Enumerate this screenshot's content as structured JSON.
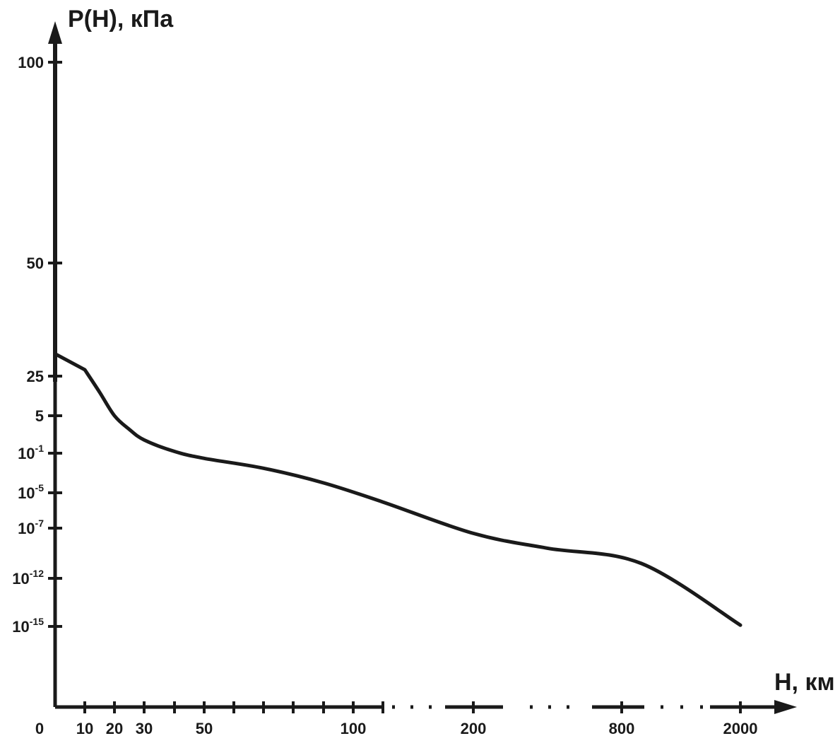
{
  "chart_data": {
    "type": "line",
    "title": "",
    "ylabel": "P(H), кПа",
    "xlabel": "H, км",
    "origin_label": "0",
    "grid": false,
    "legend": "none",
    "colors": {
      "line": "#1a1a1a",
      "axis": "#1a1a1a",
      "background": "#ffffff"
    },
    "x_ticks": [
      {
        "value": 10,
        "label": "10"
      },
      {
        "value": 20,
        "label": "20"
      },
      {
        "value": 30,
        "label": "30"
      },
      {
        "value": 40,
        "label": ""
      },
      {
        "value": 50,
        "label": "50"
      },
      {
        "value": 60,
        "label": ""
      },
      {
        "value": 70,
        "label": ""
      },
      {
        "value": 80,
        "label": ""
      },
      {
        "value": 90,
        "label": ""
      },
      {
        "value": 100,
        "label": "100"
      },
      {
        "value": 110,
        "label": ""
      },
      {
        "value": 200,
        "label": "200"
      },
      {
        "value": 800,
        "label": "800"
      },
      {
        "value": 2000,
        "label": "2000"
      }
    ],
    "y_ticks": [
      {
        "value": 100,
        "base": "100",
        "exp": ""
      },
      {
        "value": 50,
        "base": "50",
        "exp": ""
      },
      {
        "value": 25,
        "base": "25",
        "exp": ""
      },
      {
        "value": 5,
        "base": "5",
        "exp": ""
      },
      {
        "value": 0.1,
        "base": "10",
        "exp": "-1"
      },
      {
        "value": 1e-05,
        "base": "10",
        "exp": "-5"
      },
      {
        "value": 1e-07,
        "base": "10",
        "exp": "-7"
      },
      {
        "value": 1e-12,
        "base": "10",
        "exp": "-12"
      },
      {
        "value": 1e-15,
        "base": "10",
        "exp": "-15"
      }
    ],
    "series": [
      {
        "points": [
          {
            "x": 0,
            "y": 101.3
          },
          {
            "x": 10,
            "y": 26
          },
          {
            "x": 15,
            "y": 13
          },
          {
            "x": 20,
            "y": 5
          },
          {
            "x": 25,
            "y": 1.2
          },
          {
            "x": 30,
            "y": 0.4
          },
          {
            "x": 40,
            "y": 0.12
          },
          {
            "x": 50,
            "y": 0.03
          },
          {
            "x": 70,
            "y": 0.003
          },
          {
            "x": 90,
            "y": 0.0001
          },
          {
            "x": 110,
            "y": 3e-06
          },
          {
            "x": 200,
            "y": 3e-08
          },
          {
            "x": 500,
            "y": 1e-09
          },
          {
            "x": 1000,
            "y": 3e-11
          },
          {
            "x": 2000,
            "y": 1.2e-15
          }
        ]
      }
    ]
  }
}
